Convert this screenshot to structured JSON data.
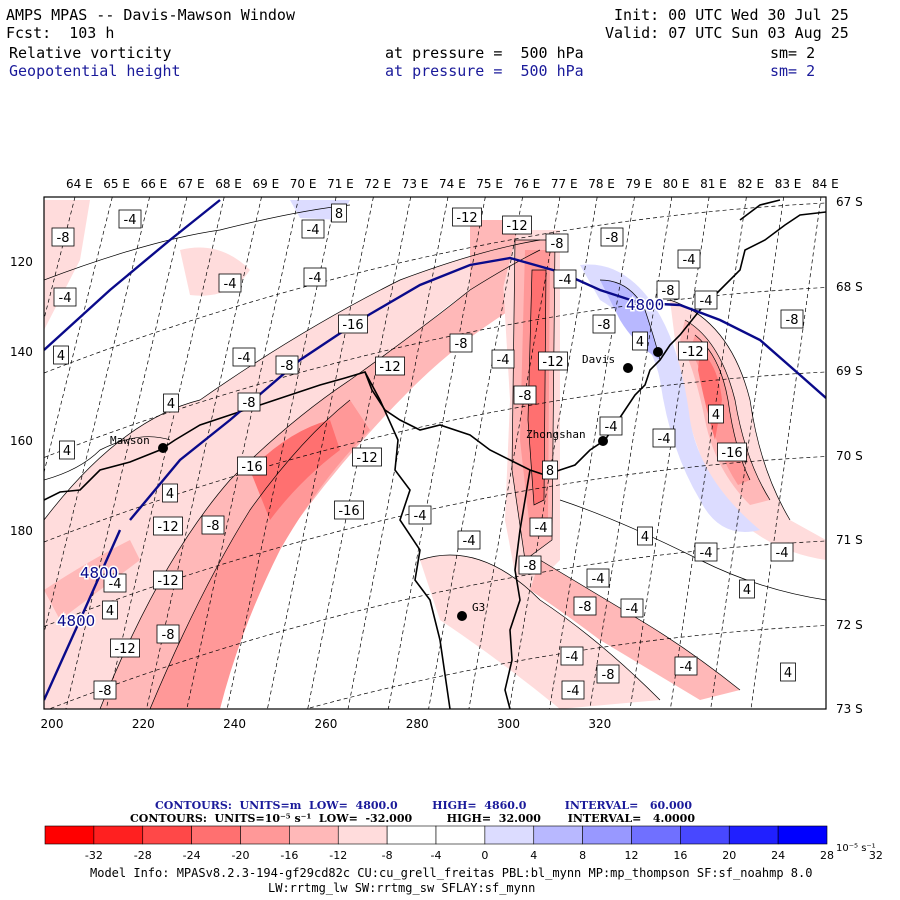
{
  "header": {
    "title": "AMPS MPAS -- Davis-Mawson Window",
    "fcst": "Fcst:  103 h",
    "init": "Init: 00 UTC Wed 30 Jul 25",
    "valid": "Valid: 07 UTC Sun 03 Aug 25",
    "field1": "Relative vorticity",
    "field1_level": "at pressure =  500 hPa",
    "field1_sm": "sm= 2",
    "field2": "Geopotential height",
    "field2_level": "at pressure =  500 hPa",
    "field2_sm": "sm= 2"
  },
  "axes": {
    "lon_labels": [
      "64 E",
      "65 E",
      "66 E",
      "67 E",
      "68 E",
      "69 E",
      "70 E",
      "71 E",
      "72 E",
      "73 E",
      "74 E",
      "75 E",
      "76 E",
      "77 E",
      "78 E",
      "79 E",
      "80 E",
      "81 E",
      "82 E",
      "83 E",
      "84 E"
    ],
    "lat_labels": [
      "67 S",
      "68 S",
      "69 S",
      "70 S",
      "71 S",
      "72 S",
      "73 S"
    ],
    "y_ticks": [
      "120",
      "140",
      "160",
      "180"
    ],
    "x_ticks": [
      "200",
      "220",
      "240",
      "260",
      "280",
      "300",
      "320"
    ]
  },
  "places": [
    {
      "name": "Mawson"
    },
    {
      "name": "Zhongshan"
    },
    {
      "name": "Davis"
    },
    {
      "name": "G3"
    }
  ],
  "height_labels": [
    "4800",
    "4800",
    "4800"
  ],
  "vort_labels": [
    "-8",
    "-4",
    "-4",
    "8",
    "-4",
    "4",
    "-12",
    "-12",
    "-4",
    "-8",
    "-8",
    "-4",
    "-4",
    "-4",
    "-8",
    "-4",
    "-8",
    "-8",
    "-4",
    "-8",
    "4",
    "4",
    "-12",
    "-4",
    "-12",
    "-12",
    "-8",
    "-16",
    "-4",
    "-8",
    "4",
    "4",
    "-8",
    "4",
    "-4",
    "-16",
    "-16",
    "-12",
    "8",
    "-12",
    "-8",
    "-16",
    "-4",
    "-4",
    "4",
    "-4",
    "-4",
    "-12",
    "-4",
    "-8",
    "4",
    "-4",
    "-12",
    "-8",
    "-8",
    "-4",
    "-8",
    "4",
    "-4",
    "-4",
    "-8",
    "-4",
    "-4",
    "4"
  ],
  "legend": {
    "line1": "CONTOURS:  UNITS=m  LOW=  4800.0         HIGH=  4860.0          INTERVAL=   60.000",
    "line2": "CONTOURS:  UNITS=10⁻⁵ s⁻¹  LOW=  -32.000         HIGH=  32.000       INTERVAL=   4.0000",
    "colors": [
      "#ff0000",
      "#ff2020",
      "#ff4848",
      "#ff7070",
      "#ff9898",
      "#ffb8b8",
      "#ffdcdc",
      "#ffffff",
      "#ffffff",
      "#dcdcff",
      "#b8b8ff",
      "#9898ff",
      "#7070ff",
      "#4848ff",
      "#2020ff",
      "#0000ff"
    ],
    "ticks": [
      "-32",
      "-28",
      "-24",
      "-20",
      "-16",
      "-12",
      "-8",
      "-4",
      "0",
      "4",
      "8",
      "12",
      "16",
      "20",
      "24",
      "28",
      "32"
    ],
    "unit": "10⁻⁵ s⁻¹"
  },
  "model_info": {
    "line1": "Model Info: MPASv8.2.3-194-gf29cd82c CU:cu_grell_freitas PBL:bl_mynn MP:mp_thompson SF:sf_noahmp 8.0",
    "line2": "LW:rrtmg_lw SW:rrtmg_sw SFLAY:sf_mynn"
  }
}
